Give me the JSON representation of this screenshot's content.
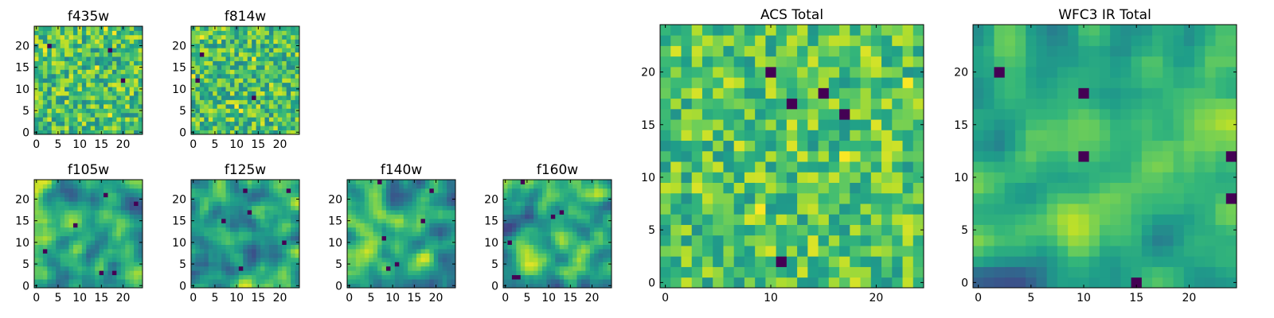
{
  "chart_data": [
    {
      "type": "heatmap",
      "title": "f435w",
      "grid_size": 25,
      "colormap": "viridis",
      "xlim": [
        -0.5,
        24.5
      ],
      "ylim": [
        -0.5,
        24.5
      ],
      "xticks": [
        0,
        5,
        10,
        15,
        20
      ],
      "yticks": [
        0,
        5,
        10,
        15,
        20
      ],
      "texture": "noisy",
      "seed": 11,
      "levels": [
        0.45,
        0.95
      ]
    },
    {
      "type": "heatmap",
      "title": "f814w",
      "grid_size": 25,
      "colormap": "viridis",
      "xlim": [
        -0.5,
        24.5
      ],
      "ylim": [
        -0.5,
        24.5
      ],
      "xticks": [
        0,
        5,
        10,
        15,
        20
      ],
      "yticks": [
        0,
        5,
        10,
        15,
        20
      ],
      "texture": "noisy",
      "seed": 23,
      "levels": [
        0.45,
        0.95
      ]
    },
    {
      "type": "heatmap",
      "title": "f105w",
      "grid_size": 25,
      "colormap": "viridis",
      "xlim": [
        -0.5,
        24.5
      ],
      "ylim": [
        -0.5,
        24.5
      ],
      "xticks": [
        0,
        5,
        10,
        15,
        20
      ],
      "yticks": [
        0,
        5,
        10,
        15,
        20
      ],
      "texture": "smooth",
      "seed": 37,
      "levels": [
        0.25,
        0.95
      ]
    },
    {
      "type": "heatmap",
      "title": "f125w",
      "grid_size": 25,
      "colormap": "viridis",
      "xlim": [
        -0.5,
        24.5
      ],
      "ylim": [
        -0.5,
        24.5
      ],
      "xticks": [
        0,
        5,
        10,
        15,
        20
      ],
      "yticks": [
        0,
        5,
        10,
        15,
        20
      ],
      "texture": "smooth",
      "seed": 41,
      "levels": [
        0.25,
        0.95
      ]
    },
    {
      "type": "heatmap",
      "title": "f140w",
      "grid_size": 25,
      "colormap": "viridis",
      "xlim": [
        -0.5,
        24.5
      ],
      "ylim": [
        -0.5,
        24.5
      ],
      "xticks": [
        0,
        5,
        10,
        15,
        20
      ],
      "yticks": [
        0,
        5,
        10,
        15,
        20
      ],
      "texture": "smooth",
      "seed": 53,
      "levels": [
        0.25,
        0.95
      ]
    },
    {
      "type": "heatmap",
      "title": "f160w",
      "grid_size": 25,
      "colormap": "viridis",
      "xlim": [
        -0.5,
        24.5
      ],
      "ylim": [
        -0.5,
        24.5
      ],
      "xticks": [
        0,
        5,
        10,
        15,
        20
      ],
      "yticks": [
        0,
        5,
        10,
        15,
        20
      ],
      "texture": "smooth",
      "seed": 67,
      "levels": [
        0.2,
        0.95
      ]
    },
    {
      "type": "heatmap",
      "title": "ACS Total",
      "grid_size": 25,
      "colormap": "viridis",
      "xlim": [
        -0.5,
        24.5
      ],
      "ylim": [
        -0.5,
        24.5
      ],
      "xticks": [
        0,
        10,
        20
      ],
      "yticks": [
        0,
        5,
        10,
        15,
        20
      ],
      "texture": "noisy",
      "seed": 79,
      "levels": [
        0.5,
        0.95
      ]
    },
    {
      "type": "heatmap",
      "title": "WFC3 IR Total",
      "grid_size": 25,
      "colormap": "viridis",
      "xlim": [
        -0.5,
        24.5
      ],
      "ylim": [
        -0.5,
        24.5
      ],
      "xticks": [
        0,
        5,
        10,
        15,
        20
      ],
      "yticks": [
        0,
        5,
        10,
        15,
        20
      ],
      "texture": "smooth",
      "seed": 97,
      "levels": [
        0.25,
        0.9
      ]
    }
  ]
}
